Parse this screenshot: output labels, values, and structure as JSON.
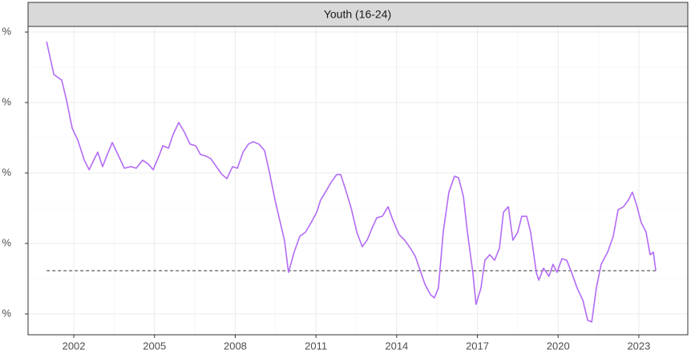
{
  "chart_data": {
    "type": "line",
    "title": "Youth (16-24)",
    "x": [
      2000.99,
      2001.26,
      2001.55,
      2001.73,
      2001.94,
      2002.15,
      2002.39,
      2002.57,
      2002.74,
      2002.89,
      2003.07,
      2003.22,
      2003.43,
      2003.67,
      2003.88,
      2004.12,
      2004.32,
      2004.56,
      2004.77,
      2004.95,
      2005.16,
      2005.31,
      2005.52,
      2005.69,
      2005.9,
      2006.11,
      2006.32,
      2006.53,
      2006.71,
      2006.92,
      2007.09,
      2007.3,
      2007.51,
      2007.69,
      2007.9,
      2008.08,
      2008.29,
      2008.49,
      2008.67,
      2008.88,
      2009.09,
      2009.27,
      2009.48,
      2009.69,
      2009.83,
      2009.98,
      2010.19,
      2010.4,
      2010.61,
      2010.82,
      2011.03,
      2011.17,
      2011.35,
      2011.56,
      2011.77,
      2011.92,
      2012.13,
      2012.31,
      2012.52,
      2012.72,
      2012.9,
      2013.11,
      2013.26,
      2013.47,
      2013.68,
      2013.86,
      2014.09,
      2014.3,
      2014.51,
      2014.69,
      2014.9,
      2015.05,
      2015.26,
      2015.4,
      2015.55,
      2015.73,
      2015.94,
      2016.15,
      2016.3,
      2016.48,
      2016.63,
      2016.83,
      2016.95,
      2017.13,
      2017.28,
      2017.46,
      2017.64,
      2017.82,
      2017.97,
      2018.15,
      2018.32,
      2018.5,
      2018.65,
      2018.83,
      2018.98,
      2019.19,
      2019.28,
      2019.46,
      2019.66,
      2019.81,
      2019.96,
      2020.14,
      2020.32,
      2020.5,
      2020.71,
      2020.92,
      2021.1,
      2021.25,
      2021.42,
      2021.6,
      2021.84,
      2022.05,
      2022.23,
      2022.43,
      2022.61,
      2022.76,
      2022.91,
      2023.09,
      2023.27,
      2023.42,
      2023.54,
      2023.63
    ],
    "series": [
      {
        "color": "#b36bf5",
        "values": [
          29.32,
          26.99,
          26.59,
          25.17,
          23.18,
          22.33,
          20.91,
          20.23,
          20.91,
          21.48,
          20.45,
          21.19,
          22.16,
          21.19,
          20.34,
          20.45,
          20.34,
          20.91,
          20.63,
          20.23,
          21.19,
          21.93,
          21.76,
          22.73,
          23.58,
          22.9,
          22.05,
          21.93,
          21.31,
          21.19,
          21.02,
          20.45,
          19.89,
          19.6,
          20.45,
          20.34,
          21.48,
          22.05,
          22.22,
          22.05,
          21.59,
          20.06,
          18.07,
          16.36,
          15.23,
          12.95,
          14.38,
          15.51,
          15.8,
          16.48,
          17.22,
          18.07,
          18.64,
          19.32,
          19.89,
          19.89,
          18.64,
          17.5,
          15.8,
          14.77,
          15.23,
          16.19,
          16.82,
          16.93,
          17.61,
          16.65,
          15.63,
          15.23,
          14.66,
          14.09,
          12.95,
          12.1,
          11.36,
          11.14,
          11.82,
          15.8,
          18.64,
          19.77,
          19.66,
          18.35,
          15.8,
          12.95,
          10.68,
          11.82,
          13.81,
          14.2,
          13.81,
          14.66,
          17.22,
          17.61,
          15.23,
          15.8,
          16.93,
          16.93,
          15.8,
          12.95,
          12.39,
          13.24,
          12.67,
          13.52,
          12.95,
          13.92,
          13.81,
          12.95,
          11.82,
          10.97,
          9.55,
          9.43,
          11.82,
          13.52,
          14.38,
          15.51,
          17.39,
          17.61,
          18.07,
          18.64,
          17.78,
          16.48,
          15.8,
          14.2,
          14.38,
          13.07
        ]
      }
    ],
    "reference_line": 13.07,
    "xlim": [
      2000.3,
      2024.82
    ],
    "xticks": [
      2002,
      2005,
      2008,
      2011,
      2014,
      2017,
      2020,
      2023
    ],
    "ylim": [
      8.52,
      30.4
    ],
    "yticks": [
      {
        "value": 10,
        "label": "%"
      },
      {
        "value": 15,
        "label": "%"
      },
      {
        "value": 20,
        "label": "%"
      },
      {
        "value": 25,
        "label": "%"
      },
      {
        "value": 30,
        "label": "%"
      }
    ],
    "grid": true
  }
}
